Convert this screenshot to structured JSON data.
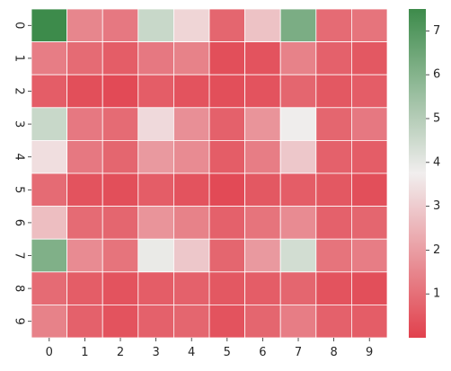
{
  "chart_data": {
    "type": "heatmap",
    "title": "",
    "xlabel": "",
    "ylabel": "",
    "x_categories": [
      "0",
      "1",
      "2",
      "3",
      "4",
      "5",
      "6",
      "7",
      "8",
      "9"
    ],
    "y_categories": [
      "0",
      "1",
      "2",
      "3",
      "4",
      "5",
      "6",
      "7",
      "8",
      "9"
    ],
    "values": [
      [
        7.5,
        1.5,
        1.2,
        4.6,
        3.2,
        0.8,
        2.8,
        6.2,
        0.9,
        1.1
      ],
      [
        1.3,
        0.9,
        0.6,
        1.2,
        1.4,
        0.3,
        0.4,
        1.4,
        0.7,
        0.5
      ],
      [
        0.6,
        0.3,
        0.2,
        0.6,
        0.4,
        0.3,
        0.4,
        0.8,
        0.5,
        0.6
      ],
      [
        4.6,
        1.2,
        0.9,
        3.3,
        1.7,
        0.7,
        1.8,
        3.8,
        0.8,
        1.2
      ],
      [
        3.4,
        1.2,
        0.8,
        1.9,
        1.6,
        0.6,
        1.3,
        2.9,
        0.7,
        0.6
      ],
      [
        0.9,
        0.4,
        0.3,
        0.6,
        0.4,
        0.2,
        0.5,
        0.6,
        0.5,
        0.3
      ],
      [
        2.7,
        0.9,
        0.8,
        1.8,
        1.4,
        0.7,
        1.1,
        1.6,
        0.7,
        0.8
      ],
      [
        6.1,
        1.6,
        1.1,
        3.9,
        2.9,
        0.8,
        1.9,
        4.4,
        1.1,
        1.3
      ],
      [
        0.9,
        0.6,
        0.4,
        0.6,
        0.7,
        0.5,
        0.6,
        0.8,
        0.4,
        0.3
      ],
      [
        1.4,
        0.7,
        0.4,
        0.7,
        0.8,
        0.4,
        0.8,
        1.3,
        0.7,
        0.6
      ]
    ],
    "vmin": 0,
    "vmax": 7.5,
    "colormap": {
      "low_color": "#e1414d",
      "mid_color": "#f1eeee",
      "high_color": "#3d8b4b",
      "mid_value": 3.75
    },
    "cell_line_color": "#ffffff",
    "colorbar": {
      "ticks": [
        1,
        2,
        3,
        4,
        5,
        6,
        7
      ],
      "tick_labels": [
        "1",
        "2",
        "3",
        "4",
        "5",
        "6",
        "7"
      ]
    },
    "grid": false,
    "legend": "colorbar-right"
  }
}
